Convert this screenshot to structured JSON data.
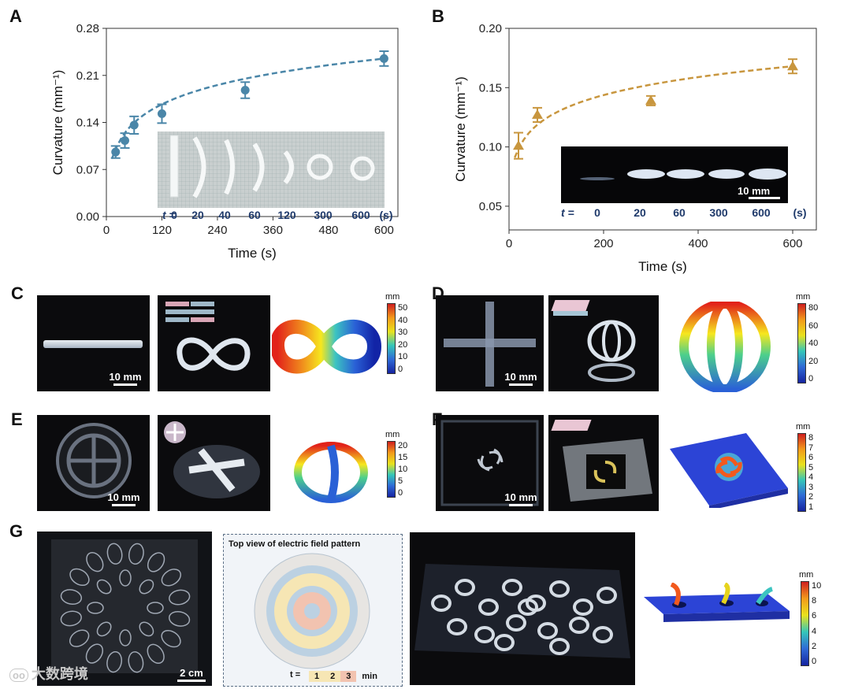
{
  "panel_labels": [
    "A",
    "B",
    "C",
    "D",
    "E",
    "F",
    "G"
  ],
  "chart_data": [
    {
      "type": "scatter",
      "panel": "A",
      "xlabel": "Time (s)",
      "ylabel": "Curvature (mm⁻¹)",
      "xlim": [
        0,
        630
      ],
      "ylim": [
        0,
        0.28
      ],
      "xticks": [
        0,
        120,
        240,
        360,
        480,
        600
      ],
      "yticks": [
        "0.00",
        "0.07",
        "0.14",
        "0.21",
        "0.28"
      ],
      "x": [
        20,
        40,
        60,
        120,
        300,
        600
      ],
      "y": [
        0.096,
        0.113,
        0.136,
        0.153,
        0.188,
        0.235
      ],
      "err": [
        0.009,
        0.011,
        0.013,
        0.014,
        0.012,
        0.011
      ],
      "fit": "dashed",
      "color": "#4a86a8",
      "marker": "circle",
      "inset_times_label": "t =",
      "inset_times": [
        "0",
        "20",
        "40",
        "60",
        "120",
        "300",
        "600",
        "(s)"
      ]
    },
    {
      "type": "scatter",
      "panel": "B",
      "xlabel": "Time (s)",
      "ylabel": "Curvature (mm⁻¹)",
      "xlim": [
        0,
        650
      ],
      "ylim": [
        0.03,
        0.2
      ],
      "xticks": [
        0,
        200,
        400,
        600
      ],
      "yticks": [
        "0.05",
        "0.10",
        "0.15",
        "0.20"
      ],
      "x": [
        20,
        60,
        300,
        600
      ],
      "y": [
        0.101,
        0.127,
        0.139,
        0.168
      ],
      "err": [
        0.011,
        0.006,
        0.004,
        0.006
      ],
      "fit": "dashed",
      "color": "#c8963e",
      "marker": "triangle",
      "inset_scale": "10 mm",
      "inset_times_label": "t =",
      "inset_times": [
        "0",
        "20",
        "60",
        "300",
        "600",
        "(s)"
      ]
    }
  ],
  "scale_bars": {
    "c": "10 mm",
    "d": "10 mm",
    "e": "10 mm",
    "f": "10 mm",
    "g": "2 cm"
  },
  "colorbars": {
    "c": {
      "unit": "mm",
      "ticks": [
        "50",
        "40",
        "30",
        "20",
        "10",
        "0"
      ]
    },
    "d": {
      "unit": "mm",
      "ticks": [
        "80",
        "60",
        "40",
        "20",
        "0"
      ]
    },
    "e": {
      "unit": "mm",
      "ticks": [
        "20",
        "15",
        "10",
        "5",
        "0"
      ]
    },
    "f": {
      "unit": "mm",
      "ticks": [
        "8",
        "7",
        "6",
        "5",
        "4",
        "3",
        "2",
        "1"
      ]
    },
    "g": {
      "unit": "mm",
      "ticks": [
        "10",
        "8",
        "6",
        "4",
        "2",
        "0"
      ]
    }
  },
  "field_pattern": {
    "title": "Top view of electric field pattern",
    "t_label": "t =",
    "times": [
      "1",
      "2",
      "3"
    ],
    "unit": "min"
  },
  "watermark": "大数跨境",
  "colors": {
    "a_series": "#4a86a8",
    "b_series": "#c8963e",
    "inset_label": "#1f3a6b"
  }
}
